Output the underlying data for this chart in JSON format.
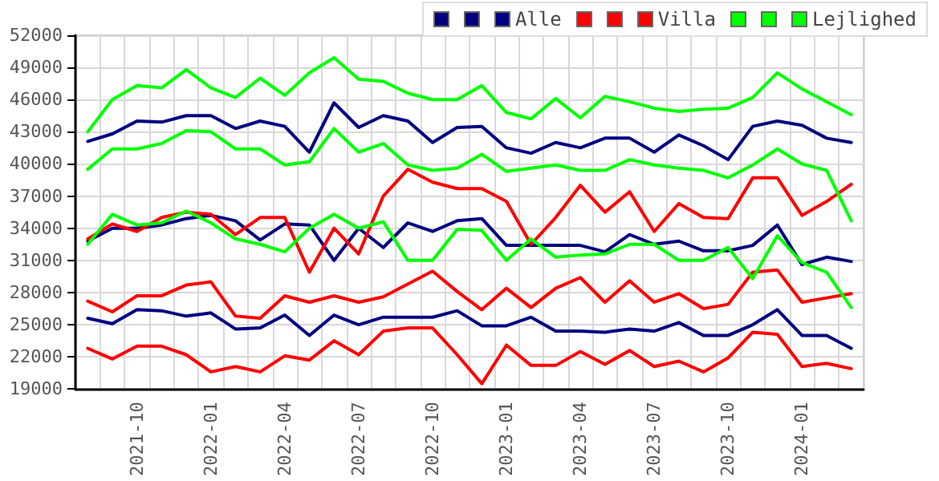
{
  "chart_data": {
    "type": "line",
    "categories": [
      null,
      null,
      "2021-10",
      null,
      null,
      "2022-01",
      null,
      null,
      "2022-04",
      null,
      null,
      "2022-07",
      null,
      null,
      "2022-10",
      null,
      null,
      "2023-01",
      null,
      null,
      "2023-04",
      null,
      null,
      "2023-07",
      null,
      null,
      "2023-10",
      null,
      null,
      "2024-01",
      null,
      null
    ],
    "series": [
      {
        "color": "#000080",
        "values": [
          42100,
          42800,
          44000,
          43900,
          44500,
          44500,
          43300,
          44000,
          43500,
          41100,
          45700,
          43400,
          44500,
          44000,
          42000,
          43400,
          43500,
          41500,
          41000,
          42000,
          41500,
          42400,
          42400,
          41100,
          42700,
          41700,
          40400,
          43500,
          44000,
          43600,
          42400,
          42000
        ]
      },
      {
        "color": "#000080",
        "values": [
          25600,
          25100,
          26400,
          26300,
          25800,
          26100,
          24600,
          24700,
          25900,
          24000,
          25900,
          25000,
          25700,
          25700,
          25700,
          26300,
          24900,
          24900,
          25700,
          24400,
          24400,
          24300,
          24600,
          24400,
          25200,
          24000,
          24000,
          25000,
          26400,
          24000,
          24000,
          22800
        ]
      },
      {
        "name": "Alle",
        "color": "#000080",
        "values": [
          32800,
          34000,
          34000,
          34300,
          34900,
          35200,
          34700,
          32900,
          34400,
          34300,
          31000,
          34000,
          32200,
          34500,
          33700,
          34700,
          34900,
          32400,
          32400,
          32400,
          32400,
          31800,
          33400,
          32500,
          32800,
          31900,
          31900,
          32400,
          34300,
          30600,
          31300,
          30900
        ]
      },
      {
        "color": "#ff0000",
        "values": [
          33000,
          34400,
          33700,
          35000,
          35500,
          35300,
          33400,
          35000,
          35000,
          29900,
          34000,
          31600,
          37000,
          39500,
          38300,
          37700,
          37700,
          36500,
          32500,
          35000,
          38000,
          35500,
          37400,
          33700,
          36300,
          35000,
          34900,
          38700,
          38700,
          35200,
          36500,
          38100
        ]
      },
      {
        "color": "#ff0000",
        "values": [
          22800,
          21800,
          23000,
          23000,
          22200,
          20600,
          21100,
          20600,
          22100,
          21700,
          23500,
          22200,
          24400,
          24700,
          24700,
          22200,
          19500,
          23100,
          21200,
          21200,
          22500,
          21300,
          22600,
          21100,
          21600,
          20600,
          21900,
          24300,
          24100,
          21100,
          21400,
          20900
        ]
      },
      {
        "name": "Villa",
        "color": "#ff0000",
        "values": [
          27200,
          26200,
          27700,
          27700,
          28700,
          29000,
          25800,
          25600,
          27700,
          27100,
          27700,
          27100,
          27600,
          28800,
          30000,
          28100,
          26400,
          28400,
          26600,
          28400,
          29400,
          27100,
          29100,
          27100,
          27900,
          26500,
          26900,
          29900,
          30100,
          27100,
          27500,
          27900
        ]
      },
      {
        "color": "#00ff00",
        "values": [
          43000,
          46000,
          47300,
          47100,
          48800,
          47100,
          46200,
          48000,
          46400,
          48500,
          49900,
          47900,
          47700,
          46600,
          46000,
          46000,
          47300,
          44800,
          44200,
          46100,
          44300,
          46300,
          45800,
          45200,
          44900,
          45100,
          45200,
          46200,
          48500,
          47000,
          45800,
          44600
        ]
      },
      {
        "color": "#00ff00",
        "values": [
          39500,
          41400,
          41400,
          41900,
          43100,
          43000,
          41400,
          41400,
          39900,
          40200,
          43300,
          41100,
          41900,
          39900,
          39400,
          39600,
          40900,
          39300,
          39600,
          39900,
          39400,
          39400,
          40400,
          39900,
          39600,
          39400,
          38700,
          39900,
          41400,
          40000,
          39400,
          34700
        ]
      },
      {
        "name": "Lejlighed",
        "color": "#00ff00",
        "values": [
          32500,
          35300,
          34300,
          34500,
          35600,
          34500,
          33000,
          32500,
          31800,
          34000,
          35300,
          34000,
          34600,
          31000,
          31000,
          33900,
          33800,
          31000,
          33000,
          31300,
          31500,
          31600,
          32500,
          32500,
          31000,
          31000,
          32200,
          29300,
          33300,
          30800,
          29900,
          26600
        ]
      }
    ],
    "ylim": [
      19000,
      52000
    ],
    "yticks": [
      19000,
      22000,
      25000,
      28000,
      31000,
      34000,
      37000,
      40000,
      43000,
      46000,
      49000,
      52000
    ],
    "grid": true,
    "legend": "top right",
    "marker": "none",
    "line_style": "solid"
  }
}
